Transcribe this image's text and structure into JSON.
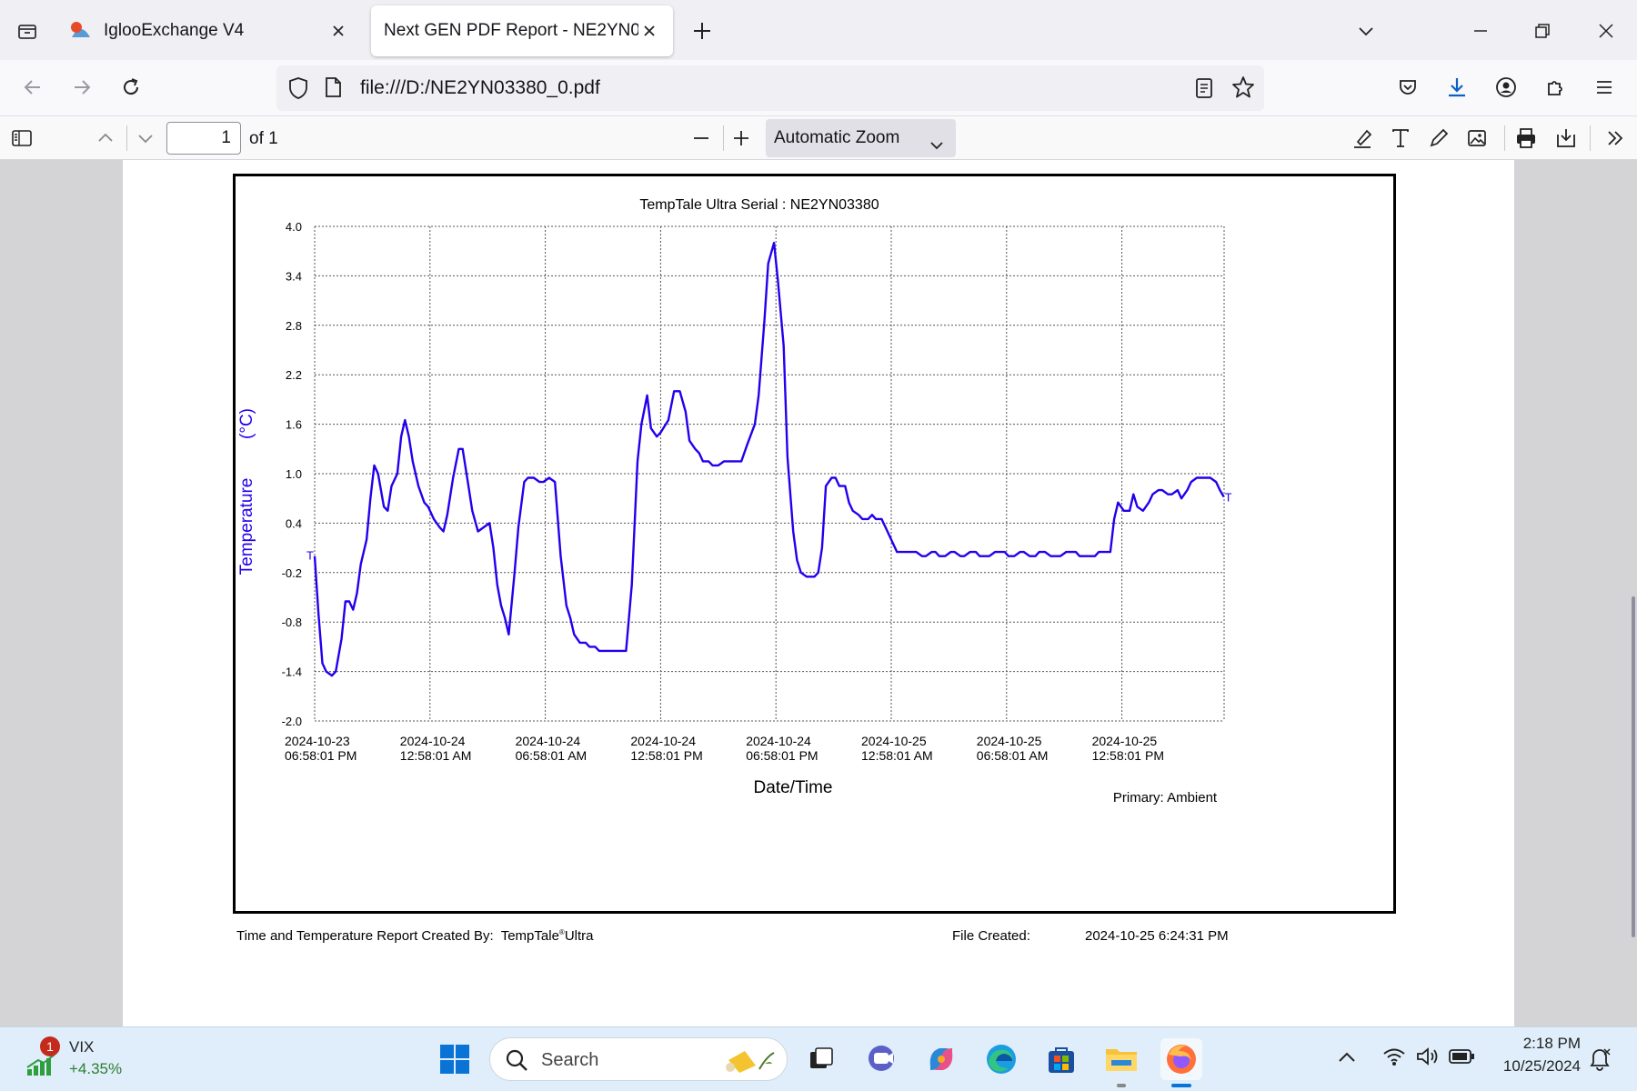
{
  "browser": {
    "tabs": [
      {
        "title": "IglooExchange V4",
        "active": false
      },
      {
        "title": "Next GEN PDF Report - NE2YN03380_0.pdf",
        "active": true
      }
    ],
    "url": "file:///D:/NE2YN03380_0.pdf"
  },
  "pdf_toolbar": {
    "page_number": "1",
    "page_count": "of 1",
    "zoom": "Automatic Zoom"
  },
  "report": {
    "created_by_label": "Time and Temperature Report Created By:",
    "created_by_app": "TempTale",
    "created_by_reg": "®",
    "created_by_suffix": "Ultra",
    "file_created_label": "File Created:",
    "file_created_value": "2024-10-25  6:24:31 PM"
  },
  "chart_data": {
    "type": "line",
    "title": "TempTale Ultra  Serial : NE2YN03380",
    "xlabel": "Date/Time",
    "ylabel": "Temperature",
    "yunit": "(°C)",
    "ylim": [
      -2.0,
      4.0
    ],
    "yticks": [
      "4.0",
      "3.4",
      "2.8",
      "2.2",
      "1.6",
      "1.0",
      "0.4",
      "-0.2",
      "-0.8",
      "-1.4",
      "-2.0"
    ],
    "xticks": [
      [
        "2024-10-23",
        "06:58:01 PM"
      ],
      [
        "2024-10-24",
        "12:58:01 AM"
      ],
      [
        "2024-10-24",
        "06:58:01 AM"
      ],
      [
        "2024-10-24",
        "12:58:01 PM"
      ],
      [
        "2024-10-24",
        "06:58:01 PM"
      ],
      [
        "2024-10-25",
        "12:58:01 AM"
      ],
      [
        "2024-10-25",
        "06:58:01 AM"
      ],
      [
        "2024-10-25",
        "12:58:01 PM"
      ]
    ],
    "x_hours_range": [
      0,
      47.3
    ],
    "legend": "Primary: Ambient",
    "series_marker": "T",
    "grid": true,
    "line_color": "#2200ee",
    "series": [
      {
        "name": "Ambient",
        "points": [
          [
            0.0,
            0.0
          ],
          [
            0.2,
            -0.7
          ],
          [
            0.4,
            -1.3
          ],
          [
            0.6,
            -1.4
          ],
          [
            0.9,
            -1.45
          ],
          [
            1.1,
            -1.4
          ],
          [
            1.4,
            -1.0
          ],
          [
            1.6,
            -0.55
          ],
          [
            1.8,
            -0.55
          ],
          [
            2.0,
            -0.65
          ],
          [
            2.2,
            -0.45
          ],
          [
            2.4,
            -0.1
          ],
          [
            2.7,
            0.2
          ],
          [
            2.9,
            0.7
          ],
          [
            3.1,
            1.1
          ],
          [
            3.3,
            1.0
          ],
          [
            3.6,
            0.6
          ],
          [
            3.8,
            0.55
          ],
          [
            4.0,
            0.85
          ],
          [
            4.3,
            1.0
          ],
          [
            4.5,
            1.45
          ],
          [
            4.7,
            1.65
          ],
          [
            4.9,
            1.45
          ],
          [
            5.1,
            1.15
          ],
          [
            5.4,
            0.85
          ],
          [
            5.7,
            0.65
          ],
          [
            5.9,
            0.6
          ],
          [
            6.2,
            0.45
          ],
          [
            6.5,
            0.35
          ],
          [
            6.7,
            0.3
          ],
          [
            6.9,
            0.5
          ],
          [
            7.2,
            0.95
          ],
          [
            7.5,
            1.3
          ],
          [
            7.7,
            1.3
          ],
          [
            8.0,
            0.85
          ],
          [
            8.2,
            0.55
          ],
          [
            8.5,
            0.3
          ],
          [
            8.8,
            0.35
          ],
          [
            9.1,
            0.4
          ],
          [
            9.3,
            0.1
          ],
          [
            9.5,
            -0.35
          ],
          [
            9.7,
            -0.6
          ],
          [
            9.9,
            -0.75
          ],
          [
            10.1,
            -0.95
          ],
          [
            10.4,
            -0.2
          ],
          [
            10.6,
            0.35
          ],
          [
            10.9,
            0.9
          ],
          [
            11.1,
            0.95
          ],
          [
            11.4,
            0.95
          ],
          [
            11.7,
            0.9
          ],
          [
            11.9,
            0.9
          ],
          [
            12.2,
            0.95
          ],
          [
            12.5,
            0.9
          ],
          [
            12.8,
            0.0
          ],
          [
            13.1,
            -0.6
          ],
          [
            13.3,
            -0.75
          ],
          [
            13.5,
            -0.95
          ],
          [
            13.8,
            -1.05
          ],
          [
            14.1,
            -1.05
          ],
          [
            14.3,
            -1.1
          ],
          [
            14.6,
            -1.1
          ],
          [
            14.8,
            -1.15
          ],
          [
            15.5,
            -1.15
          ],
          [
            16.2,
            -1.15
          ],
          [
            16.5,
            -0.35
          ],
          [
            16.8,
            1.15
          ],
          [
            17.0,
            1.6
          ],
          [
            17.3,
            1.95
          ],
          [
            17.5,
            1.55
          ],
          [
            17.8,
            1.45
          ],
          [
            18.0,
            1.5
          ],
          [
            18.4,
            1.65
          ],
          [
            18.7,
            2.0
          ],
          [
            19.0,
            2.0
          ],
          [
            19.3,
            1.75
          ],
          [
            19.5,
            1.4
          ],
          [
            19.8,
            1.3
          ],
          [
            20.0,
            1.25
          ],
          [
            20.2,
            1.15
          ],
          [
            20.5,
            1.15
          ],
          [
            20.7,
            1.1
          ],
          [
            21.0,
            1.1
          ],
          [
            21.3,
            1.15
          ],
          [
            22.2,
            1.15
          ],
          [
            22.5,
            1.35
          ],
          [
            22.9,
            1.6
          ],
          [
            23.1,
            1.95
          ],
          [
            23.4,
            2.85
          ],
          [
            23.6,
            3.55
          ],
          [
            23.9,
            3.8
          ],
          [
            24.1,
            3.35
          ],
          [
            24.4,
            2.55
          ],
          [
            24.6,
            1.2
          ],
          [
            24.9,
            0.3
          ],
          [
            25.1,
            -0.05
          ],
          [
            25.3,
            -0.2
          ],
          [
            25.6,
            -0.25
          ],
          [
            26.0,
            -0.25
          ],
          [
            26.2,
            -0.2
          ],
          [
            26.4,
            0.1
          ],
          [
            26.6,
            0.85
          ],
          [
            26.9,
            0.95
          ],
          [
            27.1,
            0.95
          ],
          [
            27.3,
            0.85
          ],
          [
            27.6,
            0.85
          ],
          [
            27.8,
            0.65
          ],
          [
            28.0,
            0.55
          ],
          [
            28.3,
            0.5
          ],
          [
            28.5,
            0.45
          ],
          [
            28.8,
            0.45
          ],
          [
            29.0,
            0.5
          ],
          [
            29.2,
            0.45
          ],
          [
            29.5,
            0.45
          ],
          [
            29.8,
            0.3
          ],
          [
            30.3,
            0.05
          ],
          [
            30.5,
            0.05
          ],
          [
            31.3,
            0.05
          ],
          [
            31.6,
            0.0
          ],
          [
            31.8,
            0.0
          ],
          [
            32.1,
            0.05
          ],
          [
            32.3,
            0.05
          ],
          [
            32.5,
            0.0
          ],
          [
            32.8,
            0.0
          ],
          [
            33.1,
            0.05
          ],
          [
            33.3,
            0.05
          ],
          [
            33.6,
            0.0
          ],
          [
            33.8,
            0.0
          ],
          [
            34.1,
            0.05
          ],
          [
            34.4,
            0.05
          ],
          [
            34.6,
            0.0
          ],
          [
            35.1,
            0.0
          ],
          [
            35.4,
            0.05
          ],
          [
            35.9,
            0.05
          ],
          [
            36.1,
            0.0
          ],
          [
            36.4,
            0.0
          ],
          [
            36.7,
            0.05
          ],
          [
            36.9,
            0.05
          ],
          [
            37.2,
            0.0
          ],
          [
            37.5,
            0.0
          ],
          [
            37.7,
            0.05
          ],
          [
            38.0,
            0.05
          ],
          [
            38.3,
            0.0
          ],
          [
            38.8,
            0.0
          ],
          [
            39.1,
            0.05
          ],
          [
            39.6,
            0.05
          ],
          [
            39.8,
            0.0
          ],
          [
            40.6,
            0.0
          ],
          [
            40.8,
            0.05
          ],
          [
            41.4,
            0.05
          ],
          [
            41.6,
            0.45
          ],
          [
            41.8,
            0.65
          ],
          [
            42.1,
            0.55
          ],
          [
            42.4,
            0.55
          ],
          [
            42.6,
            0.75
          ],
          [
            42.8,
            0.6
          ],
          [
            43.1,
            0.55
          ],
          [
            43.4,
            0.65
          ],
          [
            43.6,
            0.75
          ],
          [
            43.9,
            0.8
          ],
          [
            44.1,
            0.8
          ],
          [
            44.4,
            0.75
          ],
          [
            44.6,
            0.75
          ],
          [
            44.9,
            0.8
          ],
          [
            45.1,
            0.7
          ],
          [
            45.4,
            0.8
          ],
          [
            45.6,
            0.9
          ],
          [
            45.9,
            0.95
          ],
          [
            46.1,
            0.95
          ],
          [
            46.6,
            0.95
          ],
          [
            46.9,
            0.9
          ],
          [
            47.1,
            0.8
          ],
          [
            47.3,
            0.72
          ]
        ]
      }
    ]
  },
  "taskbar": {
    "widget_label": "VIX",
    "widget_change": "+4.35%",
    "widget_badge": "1",
    "search_label": "Search",
    "time": "2:18 PM",
    "date": "10/25/2024"
  }
}
